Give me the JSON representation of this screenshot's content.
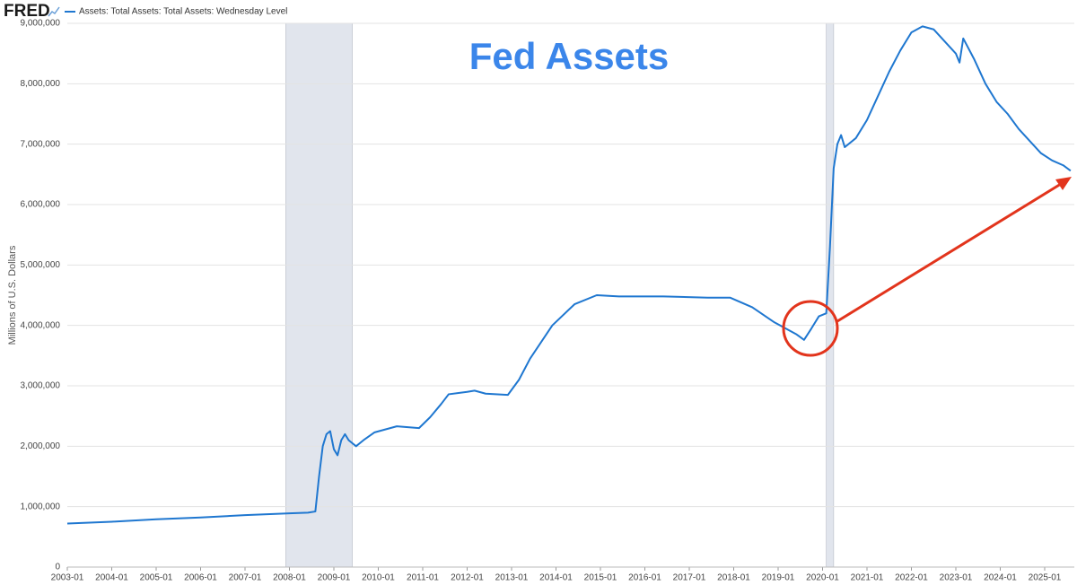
{
  "chart_data": {
    "type": "line",
    "logo": "FRED",
    "annotation": "Fed Assets",
    "y_label": "Millions of U.S. Dollars",
    "x": [
      "2003-01",
      "2004-01",
      "2005-01",
      "2006-01",
      "2007-01",
      "2008-01",
      "2008-06",
      "2008-08",
      "2008-09",
      "2008-10",
      "2008-11",
      "2008-12",
      "2009-01",
      "2009-02",
      "2009-03",
      "2009-04",
      "2009-05",
      "2009-06",
      "2009-07",
      "2009-09",
      "2009-12",
      "2010-06",
      "2010-12",
      "2011-03",
      "2011-06",
      "2011-08",
      "2012-01",
      "2012-03",
      "2012-06",
      "2012-12",
      "2013-03",
      "2013-06",
      "2013-12",
      "2014-06",
      "2014-12",
      "2015-06",
      "2016-06",
      "2017-06",
      "2017-12",
      "2018-06",
      "2018-12",
      "2019-06",
      "2019-08",
      "2019-10",
      "2019-12",
      "2020-02",
      "2020-03",
      "2020-04",
      "2020-05",
      "2020-06",
      "2020-07",
      "2020-10",
      "2021-01",
      "2021-04",
      "2021-07",
      "2021-10",
      "2022-01",
      "2022-04",
      "2022-07",
      "2022-10",
      "2023-01",
      "2023-02",
      "2023-03",
      "2023-06",
      "2023-09",
      "2023-12",
      "2024-03",
      "2024-06",
      "2024-09",
      "2024-12",
      "2025-03",
      "2025-06",
      "2025-08"
    ],
    "series": [
      {
        "name": "Assets: Total Assets: Total Assets: Wednesday Level",
        "color": "#1f77d0",
        "values": [
          720000,
          750000,
          790000,
          820000,
          860000,
          890000,
          900000,
          920000,
          1500000,
          2000000,
          2200000,
          2250000,
          1950000,
          1850000,
          2100000,
          2200000,
          2100000,
          2050000,
          2000000,
          2100000,
          2230000,
          2330000,
          2300000,
          2480000,
          2700000,
          2860000,
          2900000,
          2920000,
          2870000,
          2850000,
          3100000,
          3450000,
          4000000,
          4350000,
          4500000,
          4480000,
          4480000,
          4460000,
          4460000,
          4300000,
          4050000,
          3850000,
          3760000,
          3950000,
          4150000,
          4200000,
          5300000,
          6600000,
          7000000,
          7150000,
          6950000,
          7100000,
          7400000,
          7800000,
          8200000,
          8550000,
          8850000,
          8950000,
          8900000,
          8700000,
          8500000,
          8350000,
          8750000,
          8400000,
          8000000,
          7700000,
          7500000,
          7250000,
          7050000,
          6850000,
          6730000,
          6650000,
          6560000
        ]
      }
    ],
    "xlim": [
      "2003-01",
      "2025-09"
    ],
    "xticks": [
      "2003-01",
      "2004-01",
      "2005-01",
      "2006-01",
      "2007-01",
      "2008-01",
      "2009-01",
      "2010-01",
      "2011-01",
      "2012-01",
      "2013-01",
      "2014-01",
      "2015-01",
      "2016-01",
      "2017-01",
      "2018-01",
      "2019-01",
      "2020-01",
      "2021-01",
      "2022-01",
      "2023-01",
      "2024-01",
      "2025-01"
    ],
    "ylim": [
      0,
      9000000
    ],
    "yticks": [
      0,
      {
        "value": 1000000,
        "label": "1,000,000"
      },
      {
        "value": 2000000,
        "label": "2,000,000"
      },
      {
        "value": 3000000,
        "label": "3,000,000"
      },
      {
        "value": 4000000,
        "label": "4,000,000"
      },
      {
        "value": 5000000,
        "label": "5,000,000"
      },
      {
        "value": 6000000,
        "label": "6,000,000"
      },
      {
        "value": 7000000,
        "label": "7,000,000"
      },
      {
        "value": 8000000,
        "label": "8,000,000"
      },
      {
        "value": 9000000,
        "label": "9,000,000"
      }
    ],
    "shaded_ranges": [
      [
        "2007-12",
        "2009-06"
      ],
      [
        "2020-02",
        "2020-04"
      ]
    ],
    "shade_color": "#e1e5ed",
    "grid": true
  }
}
